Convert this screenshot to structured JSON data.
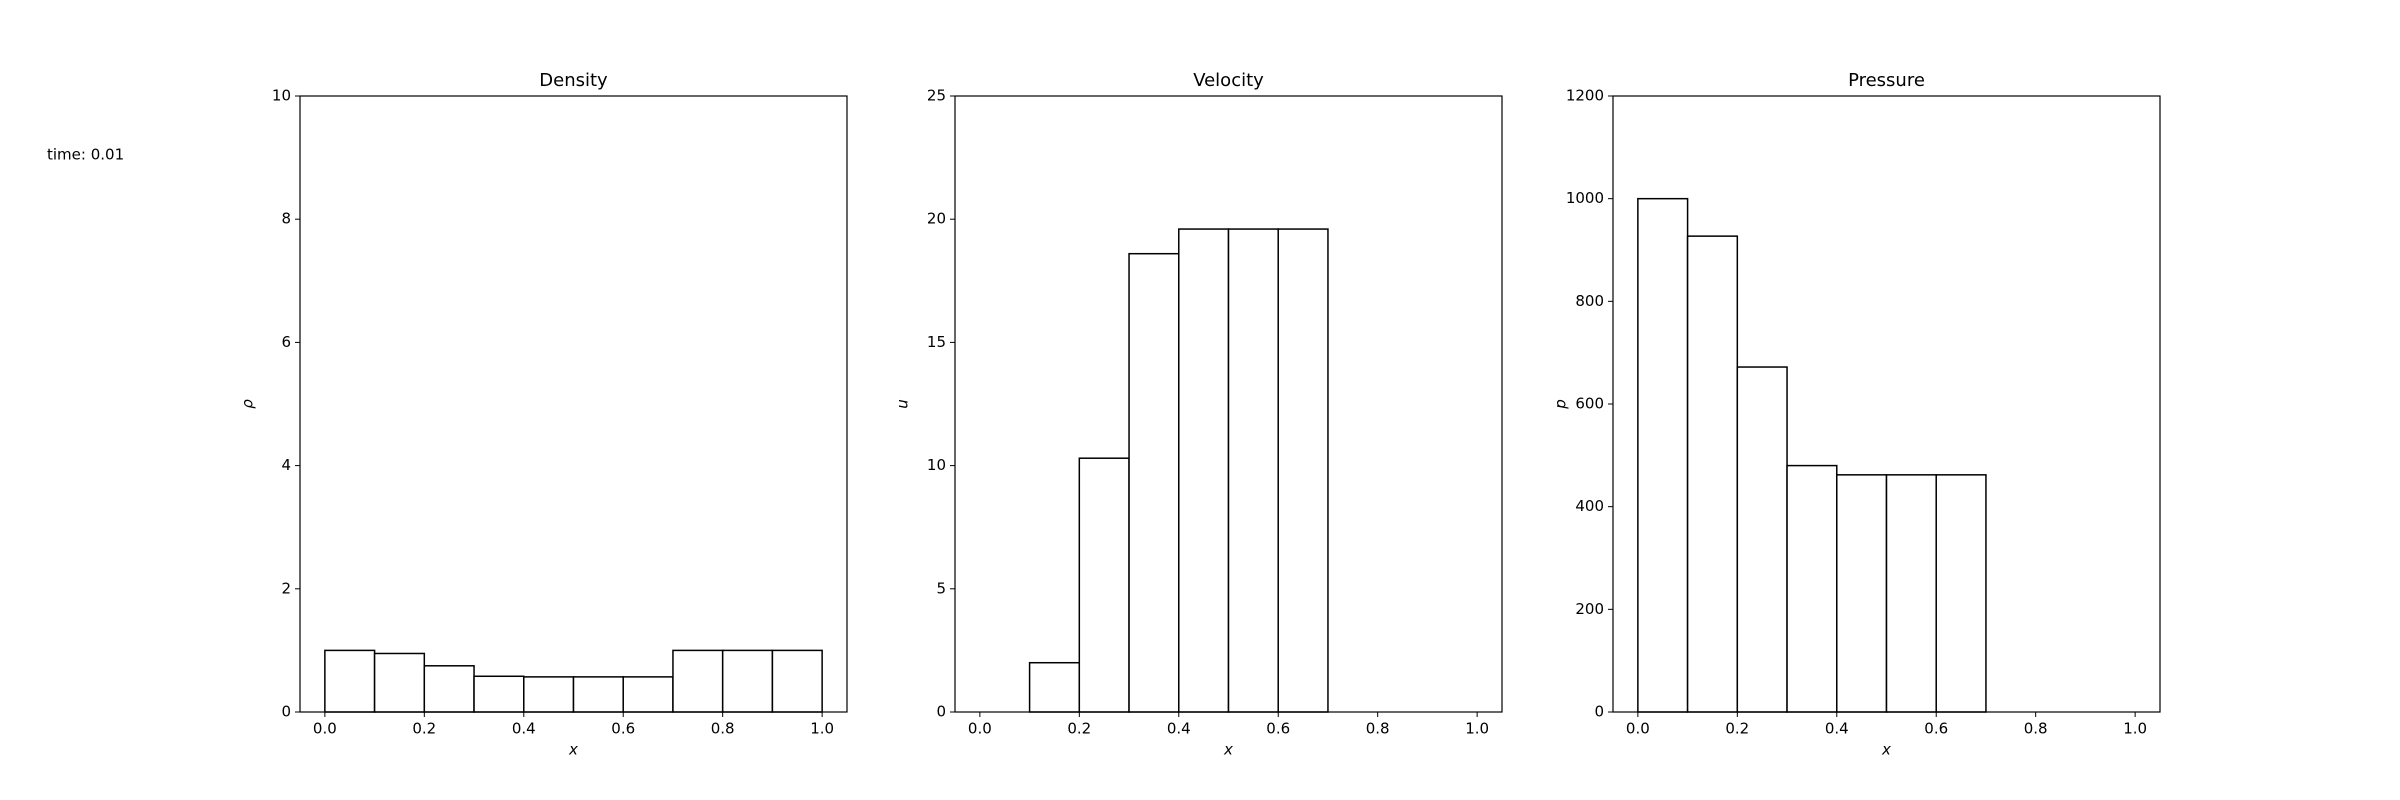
{
  "annotation": "time: 0.01",
  "chart_data": [
    {
      "type": "histogram",
      "title": "Density",
      "xlabel": "x",
      "ylabel": "ρ",
      "bins": [
        0,
        0.1,
        0.2,
        0.3,
        0.4,
        0.5,
        0.6,
        0.7,
        0.8,
        0.9,
        1.0
      ],
      "values": [
        1.0,
        0.95,
        0.75,
        0.58,
        0.57,
        0.57,
        0.57,
        1.0,
        1.0,
        1.0
      ],
      "color": "#ffffff",
      "edgecolor": "#000000",
      "xlim": [
        -0.05,
        1.05
      ],
      "xticks": [
        {
          "value": 0,
          "label": "0.0"
        },
        0.2,
        0.4,
        0.6,
        0.8,
        {
          "value": 1,
          "label": "1.0"
        }
      ],
      "ylim": [
        0,
        10
      ],
      "yticks": [
        0,
        2,
        4,
        6,
        8,
        10
      ]
    },
    {
      "type": "histogram",
      "title": "Velocity",
      "xlabel": "x",
      "ylabel": "u",
      "bins": [
        0,
        0.1,
        0.2,
        0.3,
        0.4,
        0.5,
        0.6,
        0.7,
        0.8,
        0.9,
        1.0
      ],
      "values": [
        0,
        2.0,
        10.3,
        18.6,
        19.6,
        19.6,
        19.6,
        0,
        0,
        0
      ],
      "color": "#ffffff",
      "edgecolor": "#000000",
      "xlim": [
        -0.05,
        1.05
      ],
      "xticks": [
        {
          "value": 0,
          "label": "0.0"
        },
        0.2,
        0.4,
        0.6,
        0.8,
        {
          "value": 1,
          "label": "1.0"
        }
      ],
      "ylim": [
        0,
        25
      ],
      "yticks": [
        0,
        5,
        10,
        15,
        20,
        25
      ]
    },
    {
      "type": "histogram",
      "title": "Pressure",
      "xlabel": "x",
      "ylabel": "p",
      "bins": [
        0,
        0.1,
        0.2,
        0.3,
        0.4,
        0.5,
        0.6,
        0.7,
        0.8,
        0.9,
        1.0
      ],
      "values": [
        1000,
        927,
        672,
        480,
        462,
        462,
        462,
        0,
        0,
        0
      ],
      "color": "#ffffff",
      "edgecolor": "#000000",
      "xlim": [
        -0.05,
        1.05
      ],
      "xticks": [
        {
          "value": 0,
          "label": "0.0"
        },
        0.2,
        0.4,
        0.6,
        0.8,
        {
          "value": 1,
          "label": "1.0"
        }
      ],
      "ylim": [
        0,
        1200
      ],
      "yticks": [
        0,
        200,
        400,
        600,
        800,
        1000,
        1200
      ]
    }
  ]
}
